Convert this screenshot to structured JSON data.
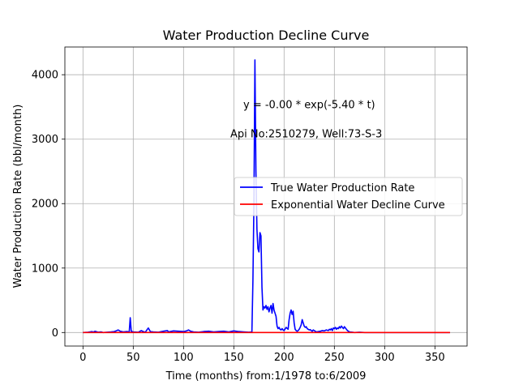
{
  "chart_data": {
    "type": "line",
    "title": "Water Production Decline Curve",
    "xlabel": "Time (months) from:1/1978 to:6/2009",
    "ylabel": "Water Production Rate (bbl/month)",
    "xlim": [
      -18,
      382
    ],
    "ylim": [
      -210,
      4430
    ],
    "xticks": [
      0,
      50,
      100,
      150,
      200,
      250,
      300,
      350
    ],
    "yticks": [
      0,
      1000,
      2000,
      3000,
      4000
    ],
    "grid": true,
    "legend_position": "center-right",
    "annotations": [
      {
        "text": "y = -0.00 * exp(-5.40 * t)",
        "x": 225,
        "y": 3480
      },
      {
        "text": "Api No:2510279, Well:73-S-3",
        "x": 222,
        "y": 3030
      }
    ],
    "series": [
      {
        "name": "True Water Production Rate",
        "color": "#0000ff",
        "x": [
          0,
          5,
          9,
          10,
          12,
          15,
          18,
          20,
          24,
          28,
          31,
          33,
          35,
          37,
          40,
          44,
          46,
          47,
          48,
          50,
          55,
          58,
          60,
          62,
          64,
          65,
          67,
          70,
          75,
          80,
          84,
          85,
          90,
          95,
          100,
          103,
          105,
          107,
          110,
          115,
          120,
          125,
          130,
          135,
          140,
          145,
          150,
          155,
          160,
          165,
          168,
          169,
          170,
          171,
          172,
          173,
          174,
          175,
          176,
          177,
          178,
          179,
          180,
          181,
          182,
          183,
          184,
          185,
          186,
          187,
          188,
          189,
          190,
          191,
          192,
          193,
          194,
          195,
          196,
          197,
          198,
          199,
          200,
          202,
          204,
          205,
          206,
          207,
          208,
          209,
          210,
          211,
          212,
          213,
          214,
          215,
          216,
          217,
          218,
          219,
          220,
          221,
          222,
          223,
          224,
          225,
          226,
          227,
          228,
          229,
          230,
          231,
          232,
          234,
          236,
          238,
          240,
          242,
          244,
          245,
          246,
          247,
          248,
          249,
          250,
          251,
          252,
          253,
          254,
          255,
          256,
          257,
          258,
          259,
          260,
          261,
          262,
          263,
          264,
          265,
          268,
          270,
          275,
          280,
          290,
          300,
          310,
          320,
          330,
          340,
          350,
          360,
          365
        ],
        "y": [
          0,
          5,
          15,
          5,
          20,
          5,
          10,
          0,
          5,
          10,
          15,
          25,
          40,
          20,
          10,
          15,
          10,
          230,
          20,
          10,
          5,
          30,
          15,
          5,
          50,
          70,
          15,
          10,
          5,
          20,
          30,
          10,
          25,
          20,
          15,
          25,
          40,
          20,
          10,
          5,
          15,
          20,
          10,
          15,
          20,
          10,
          25,
          15,
          10,
          5,
          10,
          800,
          2000,
          4230,
          2500,
          1600,
          1300,
          1250,
          1550,
          1500,
          700,
          350,
          400,
          380,
          420,
          360,
          400,
          320,
          380,
          420,
          300,
          450,
          350,
          300,
          250,
          100,
          60,
          80,
          50,
          40,
          60,
          40,
          30,
          80,
          50,
          200,
          300,
          350,
          280,
          330,
          150,
          50,
          30,
          20,
          30,
          50,
          80,
          120,
          200,
          150,
          100,
          80,
          90,
          60,
          50,
          40,
          45,
          30,
          20,
          40,
          30,
          20,
          10,
          15,
          20,
          30,
          25,
          40,
          30,
          50,
          40,
          60,
          30,
          70,
          60,
          80,
          50,
          70,
          60,
          90,
          70,
          100,
          80,
          60,
          90,
          70,
          50,
          30,
          20,
          10,
          5,
          0,
          5,
          0,
          0,
          0,
          0,
          0,
          0,
          0,
          0,
          0,
          0
        ]
      },
      {
        "name": "Exponential Water Decline Curve",
        "color": "#ff0000",
        "x": [
          0,
          365
        ],
        "y": [
          0,
          0
        ]
      }
    ]
  }
}
